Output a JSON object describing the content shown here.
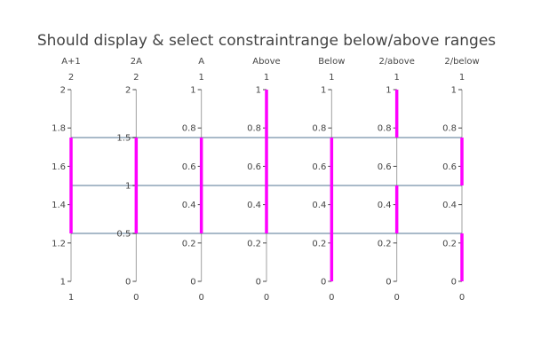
{
  "chart_data": {
    "type": "parcoords",
    "title": "Should display & select constraintrange below/above ranges",
    "dimensions": [
      {
        "label": "A+1",
        "range": [
          1,
          2
        ],
        "ticks": [
          "1",
          "1.2",
          "1.4",
          "1.6",
          "1.8",
          "2"
        ],
        "max_label": "2",
        "min_label": "1",
        "constraintrange": [
          [
            1.25,
            1.75
          ]
        ]
      },
      {
        "label": "2A",
        "range": [
          0,
          2
        ],
        "ticks": [
          "0",
          "0.5",
          "1",
          "1.5",
          "2"
        ],
        "max_label": "2",
        "min_label": "0",
        "constraintrange": [
          [
            0.5,
            1.5
          ]
        ]
      },
      {
        "label": "A",
        "range": [
          0,
          1
        ],
        "ticks": [
          "0",
          "0.2",
          "0.4",
          "0.6",
          "0.8",
          "1"
        ],
        "max_label": "1",
        "min_label": "0",
        "constraintrange": [
          [
            0.25,
            0.75
          ]
        ]
      },
      {
        "label": "Above",
        "range": [
          0,
          1
        ],
        "ticks": [
          "0",
          "0.2",
          "0.4",
          "0.6",
          "0.8",
          "1"
        ],
        "max_label": "1",
        "min_label": "0",
        "constraintrange": [
          [
            0.25,
            1.0
          ]
        ]
      },
      {
        "label": "Below",
        "range": [
          0,
          1
        ],
        "ticks": [
          "0",
          "0.2",
          "0.4",
          "0.6",
          "0.8",
          "1"
        ],
        "max_label": "1",
        "min_label": "0",
        "constraintrange": [
          [
            0.0,
            0.75
          ]
        ]
      },
      {
        "label": "2/above",
        "range": [
          0,
          1
        ],
        "ticks": [
          "0",
          "0.2",
          "0.4",
          "0.6",
          "0.8",
          "1"
        ],
        "max_label": "1",
        "min_label": "0",
        "constraintrange": [
          [
            0.25,
            0.5
          ],
          [
            0.75,
            1.0
          ]
        ]
      },
      {
        "label": "2/below",
        "range": [
          0,
          1
        ],
        "ticks": [
          "0",
          "0.2",
          "0.4",
          "0.6",
          "0.8",
          "1"
        ],
        "max_label": "1",
        "min_label": "0",
        "constraintrange": [
          [
            0.0,
            0.25
          ],
          [
            0.5,
            0.75
          ]
        ]
      }
    ],
    "lines": [
      {
        "values": [
          1.25,
          0.5,
          0.25,
          0.25,
          0.25,
          0.25,
          0.25
        ]
      },
      {
        "values": [
          1.5,
          1.0,
          0.5,
          0.5,
          0.5,
          0.5,
          0.5
        ]
      },
      {
        "values": [
          1.75,
          1.5,
          0.75,
          0.75,
          0.75,
          0.75,
          0.75
        ]
      }
    ],
    "colors": {
      "line": "#a9bac9",
      "axis": "#444444",
      "constraint": "#ff00ff",
      "text": "#444444"
    }
  }
}
